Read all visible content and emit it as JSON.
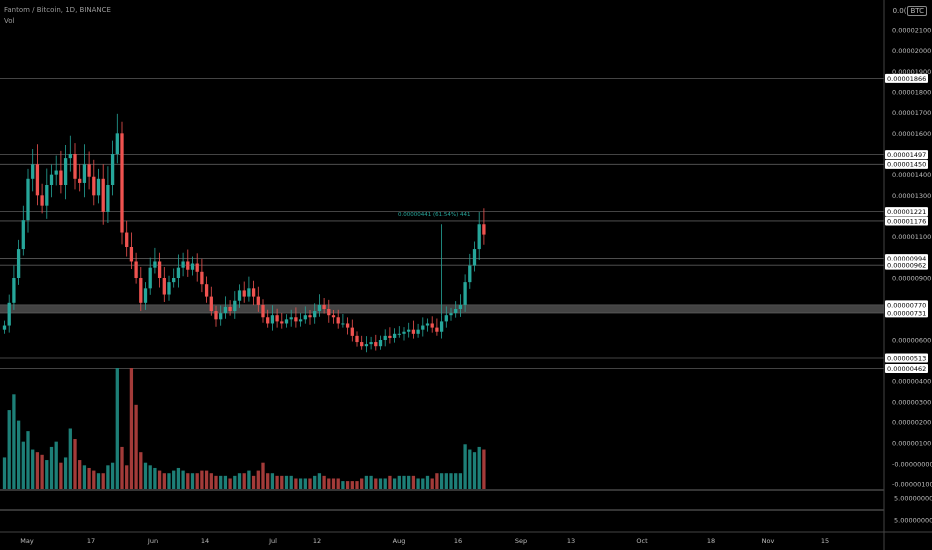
{
  "header": {
    "symbol_line": "Fantom / Bitcoin, 1D, BINANCE",
    "volume_label": "Vol",
    "axis_prefix": "0.0(",
    "currency": "BTC"
  },
  "colors": {
    "up": "#26a69a",
    "down": "#ef5350",
    "up_vol": "#1d7f77",
    "down_vol": "#a33b39",
    "grid": "#2a2a2a",
    "label_bg": "#ffffff",
    "label_fg": "#000000",
    "axis_text": "#bdbdbd",
    "zone": "#5a5a5a"
  },
  "chart_data": {
    "type": "candlestick",
    "x_tick_labels": [
      "May",
      "17",
      "Jun",
      "14",
      "Jul",
      "12",
      "Aug",
      "16",
      "Sep",
      "13",
      "Oct",
      "18",
      "Nov",
      "15"
    ],
    "price_axis_ticks": [
      "0.00002100",
      "0.00002000",
      "0.00001900",
      "0.00001800",
      "0.00001700",
      "0.00001600",
      "0.00001400",
      "0.00001300",
      "0.00001100",
      "0.00000900",
      "0.00000600",
      "0.00000400",
      "0.00000300",
      "0.00000200",
      "0.00000100",
      "-0.00000000",
      "-0.00000100"
    ],
    "volume_axis_ticks": [
      "5.00000000",
      "5.00000000"
    ],
    "horizontal_levels": [
      {
        "label": "0.00001866",
        "value": 1.866e-05
      },
      {
        "label": "0.00001497",
        "value": 1.497e-05
      },
      {
        "label": "0.00001450",
        "value": 1.45e-05
      },
      {
        "label": "0.00001221",
        "value": 1.221e-05
      },
      {
        "label": "0.00001176",
        "value": 1.176e-05
      },
      {
        "label": "0.00000994",
        "value": 9.94e-06
      },
      {
        "label": "0.00000962",
        "value": 9.62e-06
      },
      {
        "label": "0.00000770",
        "value": 7.7e-06
      },
      {
        "label": "0.00000731",
        "value": 7.31e-06
      },
      {
        "label": "0.00000513",
        "value": 5.13e-06
      },
      {
        "label": "0.00000462",
        "value": 4.62e-06
      }
    ],
    "zone": {
      "low": 7.31e-06,
      "high": 7.7e-06
    },
    "measurement_label": "0.00000441 (61.54%) 441",
    "closes": [
      6.7e-06,
      7.8e-06,
      9e-06,
      1.04e-05,
      1.18e-05,
      1.38e-05,
      1.45e-05,
      1.3e-05,
      1.25e-05,
      1.35e-05,
      1.4e-05,
      1.42e-05,
      1.35e-05,
      1.48e-05,
      1.5e-05,
      1.38e-05,
      1.36e-05,
      1.45e-05,
      1.39e-05,
      1.3e-05,
      1.38e-05,
      1.22e-05,
      1.35e-05,
      1.5e-05,
      1.6e-05,
      1.12e-05,
      1.05e-05,
      9.8e-06,
      9e-06,
      7.8e-06,
      8.5e-06,
      9.5e-06,
      9.8e-06,
      9e-06,
      8.2e-06,
      8.8e-06,
      9e-06,
      9.5e-06,
      9.8e-06,
      9.4e-06,
      9.7e-06,
      9.3e-06,
      8.7e-06,
      8.1e-06,
      7.4e-06,
      7e-06,
      7.3e-06,
      7.6e-06,
      7.4e-06,
      7.9e-06,
      8.4e-06,
      8.1e-06,
      8.5e-06,
      8.1e-06,
      7.7e-06,
      7.1e-06,
      6.8e-06,
      7.2e-06,
      6.9e-06,
      6.8e-06,
      7e-06,
      7.1e-06,
      6.9e-06,
      7e-06,
      7.2e-06,
      7.1e-06,
      7.4e-06,
      7.7e-06,
      7.5e-06,
      7.2e-06,
      7.1e-06,
      6.8e-06,
      6.8e-06,
      6.6e-06,
      6.2e-06,
      5.9e-06,
      5.7e-06,
      5.8e-06,
      5.9e-06,
      5.7e-06,
      6e-06,
      6.2e-06,
      6.1e-06,
      6.3e-06,
      6.3e-06,
      6.4e-06,
      6.5e-06,
      6.3e-06,
      6.5e-06,
      6.7e-06,
      6.8e-06,
      6.6e-06,
      6.4e-06,
      6.9e-06,
      7.2e-06,
      7.3e-06,
      7.5e-06,
      7.7e-06,
      8.8e-06,
      9.6e-06,
      1.04e-05,
      1.16e-05,
      1.11e-05
    ],
    "volumes": [
      1.2,
      3.0,
      3.6,
      2.6,
      1.8,
      2.2,
      1.5,
      1.4,
      1.3,
      1.1,
      1.6,
      1.8,
      1.0,
      1.2,
      2.3,
      1.9,
      1.1,
      0.9,
      0.8,
      0.7,
      0.6,
      0.6,
      0.9,
      1.0,
      4.6,
      1.6,
      0.9,
      4.6,
      3.2,
      1.4,
      1.0,
      0.9,
      0.8,
      0.7,
      0.6,
      0.6,
      0.7,
      0.8,
      0.7,
      0.6,
      0.6,
      0.6,
      0.7,
      0.7,
      0.6,
      0.5,
      0.5,
      0.5,
      0.4,
      0.5,
      0.6,
      0.6,
      0.7,
      0.5,
      0.7,
      1.0,
      0.6,
      0.6,
      0.5,
      0.5,
      0.5,
      0.5,
      0.4,
      0.4,
      0.4,
      0.4,
      0.5,
      0.6,
      0.5,
      0.4,
      0.4,
      0.4,
      0.3,
      0.3,
      0.3,
      0.3,
      0.4,
      0.5,
      0.5,
      0.4,
      0.4,
      0.4,
      0.5,
      0.4,
      0.5,
      0.5,
      0.5,
      0.5,
      0.4,
      0.4,
      0.5,
      0.4,
      0.6,
      0.6,
      0.6,
      0.6,
      0.6,
      0.6,
      1.7,
      1.5,
      1.4,
      1.6,
      1.5
    ]
  }
}
